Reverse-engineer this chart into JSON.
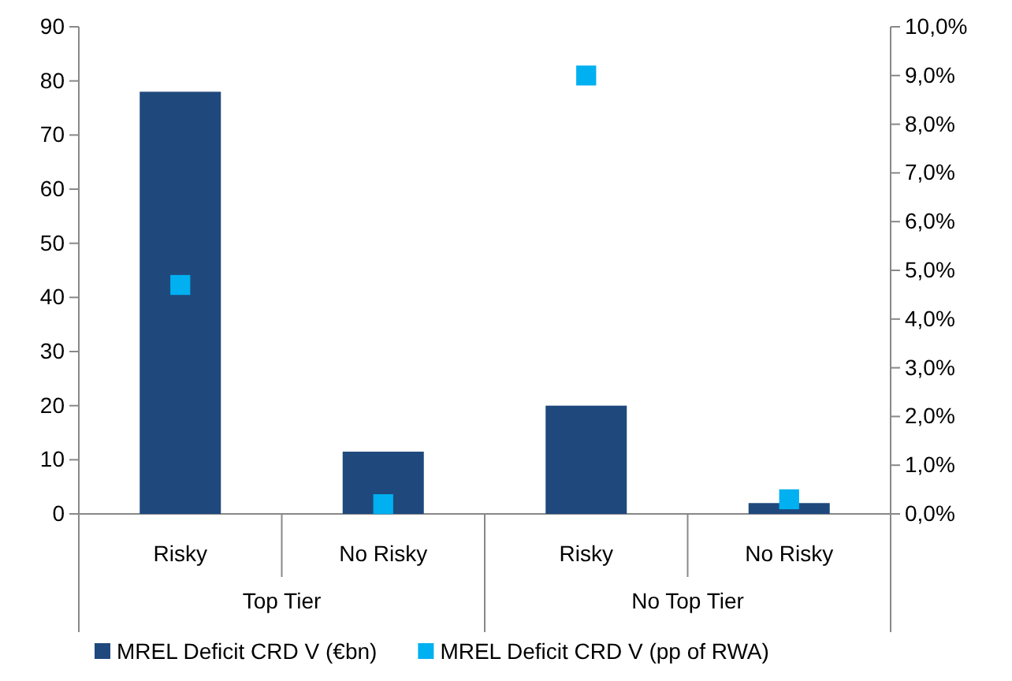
{
  "chart_data": {
    "type": "bar",
    "categories": [
      "Risky",
      "No Risky",
      "Risky",
      "No Risky"
    ],
    "series": [
      {
        "name": "MREL Deficit CRD V (€bn)",
        "color": "#1f497d",
        "values": [
          78,
          11.5,
          20,
          2
        ]
      },
      {
        "name": "MREL Deficit CRD V (pp of RWA)",
        "type": "scatter",
        "axis": "y2",
        "color": "#00b0f0",
        "marker": "square",
        "values": [
          4.7,
          0.2,
          9.0,
          0.3
        ]
      }
    ],
    "annotations": [
      "Top Tier",
      "No Top Tier"
    ],
    "ylim": [
      0,
      90
    ],
    "yticks": [
      0,
      10,
      20,
      30,
      40,
      50,
      60,
      70,
      80,
      90
    ],
    "y2lim": [
      0,
      10
    ],
    "y2ticks": [
      {
        "value": 0,
        "label": "0,0%"
      },
      {
        "value": 1,
        "label": "1,0%"
      },
      {
        "value": 2,
        "label": "2,0%"
      },
      {
        "value": 3,
        "label": "3,0%"
      },
      {
        "value": 4,
        "label": "4,0%"
      },
      {
        "value": 5,
        "label": "5,0%"
      },
      {
        "value": 6,
        "label": "6,0%"
      },
      {
        "value": 7,
        "label": "7,0%"
      },
      {
        "value": 8,
        "label": "8,0%"
      },
      {
        "value": 9,
        "label": "9,0%"
      },
      {
        "value": 10,
        "label": "10,0%"
      }
    ],
    "grid": false,
    "legend": "bottom"
  }
}
